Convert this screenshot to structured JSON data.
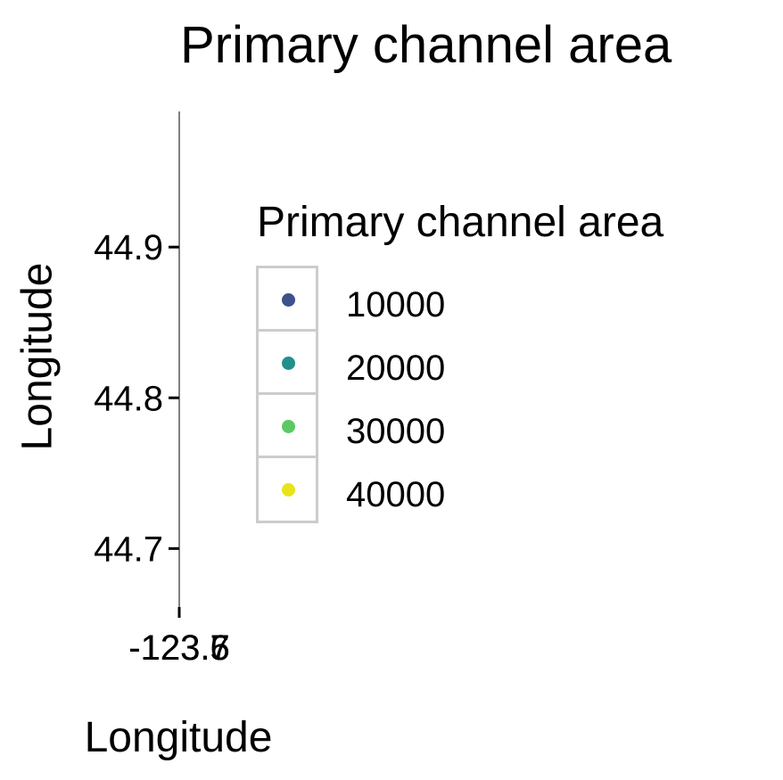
{
  "chart_data": {
    "type": "scatter",
    "title": "Primary channel area",
    "xlabel": "Longitude",
    "ylabel": "Longitude",
    "x_ticks": [
      "-123.7",
      "-123.6",
      "-123.5"
    ],
    "y_ticks": [
      44.7,
      44.8,
      44.9
    ],
    "ylim": [
      44.66,
      44.99
    ],
    "grid": false,
    "legend": {
      "title": "Primary channel area",
      "placement": "right",
      "entries": [
        {
          "label": "10000",
          "color": "#3b528b"
        },
        {
          "label": "20000",
          "color": "#21908d"
        },
        {
          "label": "30000",
          "color": "#5dc863"
        },
        {
          "label": "40000",
          "color": "#e8e419"
        }
      ]
    },
    "points": []
  }
}
